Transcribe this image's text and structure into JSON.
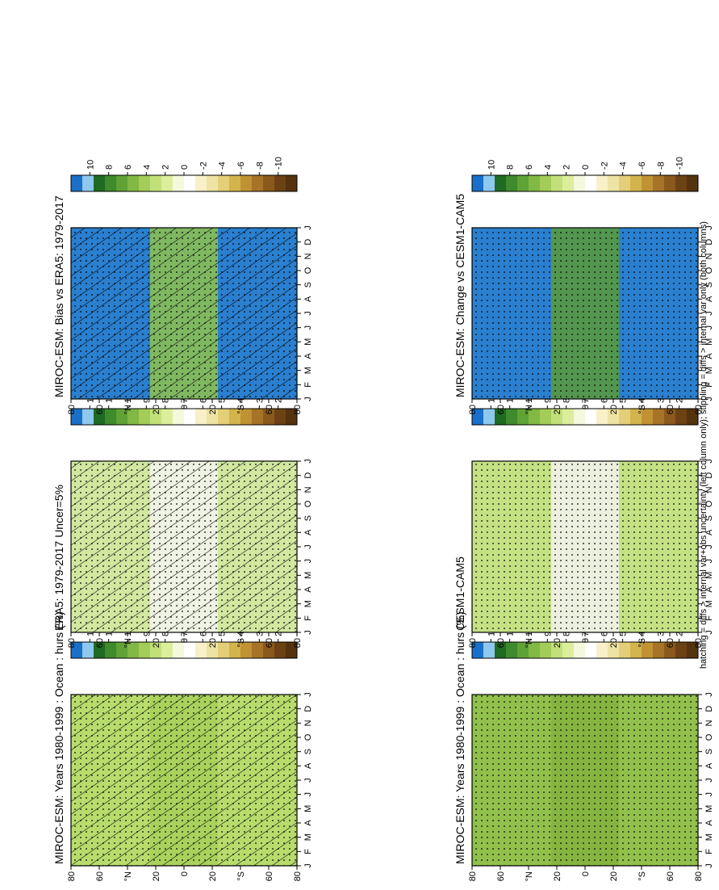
{
  "figure": {
    "footer": "hatching = diffs > internal var+obs uncertainty (left column only); stippling = diffs > internal var only (both columns)"
  },
  "chart_data": [
    {
      "type": "heatmap",
      "title": "MIROC-ESM: Years 1980-1999 : Ocean : hurs (%)",
      "x_ticks": [
        "J",
        "F",
        "M",
        "A",
        "M",
        "J",
        "J",
        "A",
        "S",
        "O",
        "N",
        "D",
        "J"
      ],
      "y_ticks": [
        "80",
        "60",
        "°N",
        "20",
        "0",
        "20",
        "°S",
        "60",
        "80"
      ],
      "colorbar_ticks": [
        "120",
        "110",
        "100",
        "90",
        "80",
        "70",
        "60",
        "50",
        "40",
        "30",
        "20"
      ],
      "fill": "#b8dc6c",
      "mid": "#a6d05a",
      "hatching": true,
      "stippling": true
    },
    {
      "type": "heatmap",
      "title": "MIROC-ESM: Years 1980-1999 : Ocean : hurs (%)",
      "x_ticks": [
        "J",
        "F",
        "M",
        "A",
        "M",
        "J",
        "J",
        "A",
        "S",
        "O",
        "N",
        "D",
        "J"
      ],
      "y_ticks": [
        "80",
        "60",
        "°N",
        "20",
        "0",
        "20",
        "°S",
        "60",
        "80"
      ],
      "colorbar_ticks": [
        "120",
        "110",
        "100",
        "90",
        "80",
        "70",
        "60",
        "50",
        "40",
        "30",
        "20"
      ],
      "fill": "#92c04c",
      "mid": "#82b23e",
      "hatching": false,
      "stippling": true
    },
    {
      "type": "heatmap",
      "title": "ERA5: 1979-2017 Uncer=5%",
      "x_ticks": [
        "J",
        "F",
        "M",
        "A",
        "M",
        "J",
        "J",
        "A",
        "S",
        "O",
        "N",
        "D",
        "J"
      ],
      "y_ticks": [
        "80",
        "60",
        "°N",
        "20",
        "0",
        "20",
        "°S",
        "60",
        "80"
      ],
      "colorbar_ticks": [
        "120",
        "110",
        "100",
        "90",
        "80",
        "70",
        "60",
        "50",
        "40",
        "30",
        "20"
      ],
      "fill": "#d2e8a0",
      "mid": "#f4f4ee",
      "hatching": true,
      "stippling": true
    },
    {
      "type": "heatmap",
      "title": "CESM1-CAM5",
      "x_ticks": [
        "J",
        "F",
        "M",
        "A",
        "M",
        "J",
        "J",
        "A",
        "S",
        "O",
        "N",
        "D",
        "J"
      ],
      "y_ticks": [
        "80",
        "60",
        "°N",
        "20",
        "0",
        "20",
        "°S",
        "60",
        "80"
      ],
      "colorbar_ticks": [
        "120",
        "110",
        "100",
        "90",
        "80",
        "70",
        "60",
        "50",
        "40",
        "30",
        "20"
      ],
      "fill": "#c4e184",
      "mid": "#f2f2ee",
      "hatching": false,
      "stippling": true
    },
    {
      "type": "heatmap",
      "title": "MIROC-ESM: Bias vs ERA5: 1979-2017",
      "x_ticks": [
        "J",
        "F",
        "M",
        "A",
        "M",
        "J",
        "J",
        "A",
        "S",
        "O",
        "N",
        "D",
        "J"
      ],
      "y_ticks": [
        "80",
        "60",
        "°N",
        "20",
        "0",
        "20",
        "°S",
        "60",
        "80"
      ],
      "colorbar_ticks": [
        "10",
        "8",
        "6",
        "4",
        "2",
        "0",
        "-2",
        "-4",
        "-6",
        "-8",
        "-10"
      ],
      "fill": "#2a7fcf",
      "mid": "#8ec24e",
      "hatching": true,
      "stippling": true
    },
    {
      "type": "heatmap",
      "title": "MIROC-ESM: Change vs CESM1-CAM5",
      "x_ticks": [
        "J",
        "F",
        "M",
        "A",
        "M",
        "J",
        "J",
        "A",
        "S",
        "O",
        "N",
        "D",
        "J"
      ],
      "y_ticks": [
        "80",
        "60",
        "°N",
        "20",
        "0",
        "20",
        "°S",
        "60",
        "80"
      ],
      "colorbar_ticks": [
        "10",
        "8",
        "6",
        "4",
        "2",
        "0",
        "-2",
        "-4",
        "-6",
        "-8",
        "-10"
      ],
      "fill": "#2a7fcf",
      "mid": "#5a9a38",
      "hatching": false,
      "stippling": true
    }
  ],
  "palette": {
    "colorbar": [
      "#1a70c8",
      "#8fc8ef",
      "#1f6a22",
      "#3e8a2c",
      "#5fa236",
      "#82b844",
      "#a4cc58",
      "#c2e07a",
      "#dcee9c",
      "#f4f8dc",
      "#ffffff",
      "#f8f0c8",
      "#eee3a4",
      "#e2cf78",
      "#d2b44c",
      "#c19234",
      "#a77326",
      "#8a5a1c",
      "#6c4214",
      "#55330e"
    ]
  }
}
